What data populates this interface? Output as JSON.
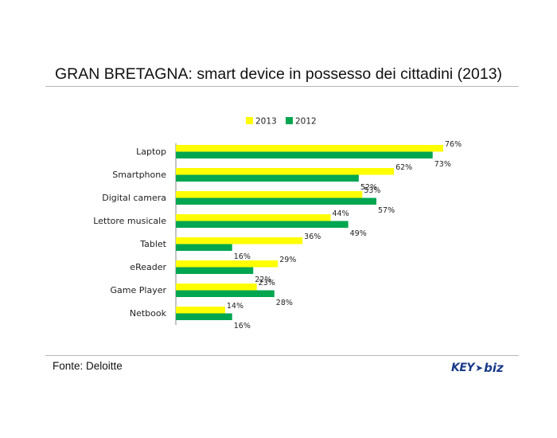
{
  "title": "GRAN BRETAGNA: smart device in possesso dei cittadini (2013)",
  "source": "Fonte: Deloitte",
  "logo": {
    "key": "KEY",
    "biz": "biz"
  },
  "colors": {
    "series_2013": "#ffff00",
    "series_2012": "#00a650"
  },
  "chart_data": {
    "type": "bar",
    "orientation": "horizontal",
    "title": "GRAN BRETAGNA: smart device in possesso dei cittadini (2013)",
    "categories": [
      "Laptop",
      "Smartphone",
      "Digital camera",
      "Lettore musicale",
      "Tablet",
      "eReader",
      "Game Player",
      "Netbook"
    ],
    "series": [
      {
        "name": "2013",
        "values": [
          76,
          62,
          53,
          44,
          36,
          29,
          23,
          14
        ],
        "labels": [
          "76%",
          "62%",
          "53%",
          "44%",
          "36%",
          "29%",
          "23%",
          "14%"
        ]
      },
      {
        "name": "2012",
        "values": [
          73,
          52,
          57,
          49,
          16,
          22,
          28,
          16
        ],
        "labels": [
          "73%",
          "52%",
          "57%",
          "49%",
          "16%",
          "22%",
          "28%",
          "16%"
        ]
      }
    ],
    "xlim": [
      0,
      76
    ],
    "unit": "%",
    "legend_position": "top",
    "grid": false
  }
}
